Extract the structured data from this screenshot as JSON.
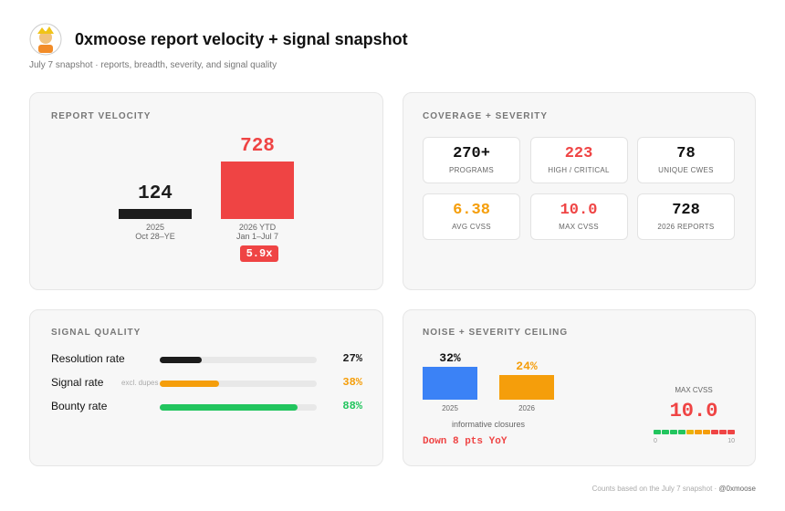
{
  "header": {
    "title": "0xmoose report velocity + signal snapshot",
    "subtitle": "July 7 snapshot · reports, breadth, severity, and signal quality"
  },
  "velocity": {
    "title": "REPORT VELOCITY",
    "bars": [
      {
        "value": 124,
        "label": "2025",
        "sublabel": "Oct 28–YE",
        "color": "#1c1c1c"
      },
      {
        "value": 728,
        "label": "2026 YTD",
        "sublabel": "Jan 1–Jul 7",
        "color": "#ef4444"
      }
    ],
    "multiplier": "5.9x"
  },
  "coverage": {
    "title": "COVERAGE + SEVERITY",
    "tiles": [
      {
        "value": "270+",
        "label": "PROGRAMS",
        "color": "#111111"
      },
      {
        "value": 223,
        "label": "HIGH / CRITICAL",
        "color": "#ef4444"
      },
      {
        "value": 78,
        "label": "UNIQUE CWES",
        "color": "#111111"
      },
      {
        "value": 6.38,
        "label": "AVG CVSS",
        "color": "#f59e0b"
      },
      {
        "value": "10.0",
        "label": "MAX CVSS",
        "color": "#ef4444"
      },
      {
        "value": 728,
        "label": "2026 REPORTS",
        "color": "#111111"
      }
    ]
  },
  "signal": {
    "title": "SIGNAL QUALITY",
    "xlim": [
      0,
      100
    ],
    "rows": [
      {
        "label": "Resolution rate",
        "value": 27,
        "value_label": "27%",
        "color": "#1c1c1c"
      },
      {
        "label": "Signal rate",
        "note": "excl. dupes",
        "value": 38,
        "value_label": "38%",
        "color": "#f59e0b"
      },
      {
        "label": "Bounty rate",
        "value": 88,
        "value_label": "88%",
        "color": "#22c55e"
      }
    ]
  },
  "noise": {
    "title": "NOISE + SEVERITY CEILING",
    "bars": [
      {
        "value": 32,
        "value_label": "32%",
        "label": "2025",
        "color": "#3b82f6"
      },
      {
        "value": 24,
        "value_label": "24%",
        "label": "2026",
        "color": "#f59e0b"
      }
    ],
    "caption": "informative closures",
    "delta": "Down 8 pts YoY",
    "gauge": {
      "title": "MAX CVSS",
      "value": 10,
      "value_label": "10.0",
      "min": 0,
      "max": 10,
      "segment_colors": [
        "#22c55e",
        "#22c55e",
        "#22c55e",
        "#22c55e",
        "#eab308",
        "#f59e0b",
        "#f59e0b",
        "#ef4444",
        "#ef4444",
        "#ef4444"
      ]
    }
  },
  "footer": {
    "note": "Counts based on the July 7 snapshot ·",
    "handle": "@0xmoose"
  }
}
